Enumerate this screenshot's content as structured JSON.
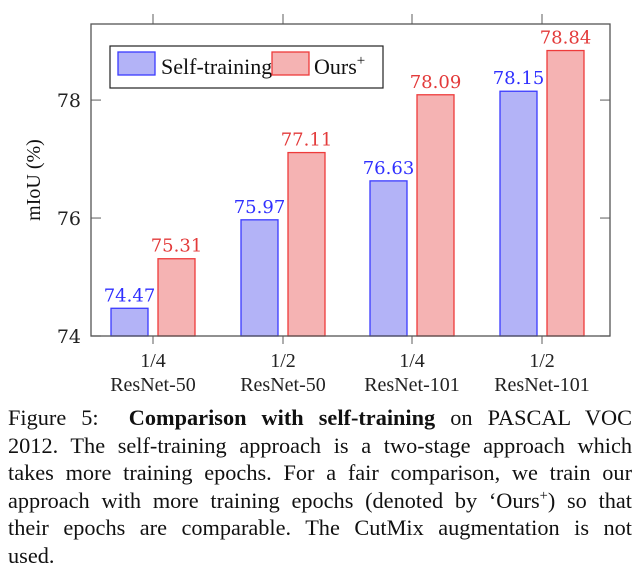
{
  "chart_data": {
    "type": "bar",
    "title": "",
    "xlabel": "",
    "ylabel": "mIoU (%)",
    "ylim": [
      74,
      79.29
    ],
    "yticks": [
      74,
      76,
      78
    ],
    "grid": false,
    "legend_position": "top-left",
    "categories": [
      {
        "line1": "1/4",
        "line2": "ResNet-50"
      },
      {
        "line1": "1/2",
        "line2": "ResNet-50"
      },
      {
        "line1": "1/4",
        "line2": "ResNet-101"
      },
      {
        "line1": "1/2",
        "line2": "ResNet-101"
      }
    ],
    "series": [
      {
        "name": "Self-training",
        "name_sup": "",
        "values": [
          74.47,
          75.97,
          76.63,
          78.15
        ],
        "labels": [
          "74.47",
          "75.97",
          "76.63",
          "78.15"
        ],
        "fill": "#b3b3f7",
        "stroke": "#3a3aff",
        "label_color": "#2f2fff"
      },
      {
        "name": "Ours",
        "name_sup": "+",
        "values": [
          75.31,
          77.11,
          78.09,
          78.84
        ],
        "labels": [
          "75.31",
          "77.11",
          "78.09",
          "78.84"
        ],
        "fill": "#f5b3b3",
        "stroke": "#ee3b3b",
        "label_color": "#e33a3a"
      }
    ]
  },
  "caption": {
    "figure_label": "Figure 5:",
    "bold_title": "Comparison with self-training",
    "line1_rest": "on PASCAL VOC",
    "line2": "2012. The self-training approach is a two-stage approach which",
    "line3": "takes more training epochs. For a fair comparison, we train our",
    "line4_pre": "approach with more training epochs (denoted by ‘Ours",
    "line4_sup": "+",
    "line4_post": ") so that",
    "line5": "their epochs are comparable. The CutMix augmentation is not",
    "line6": "used."
  }
}
